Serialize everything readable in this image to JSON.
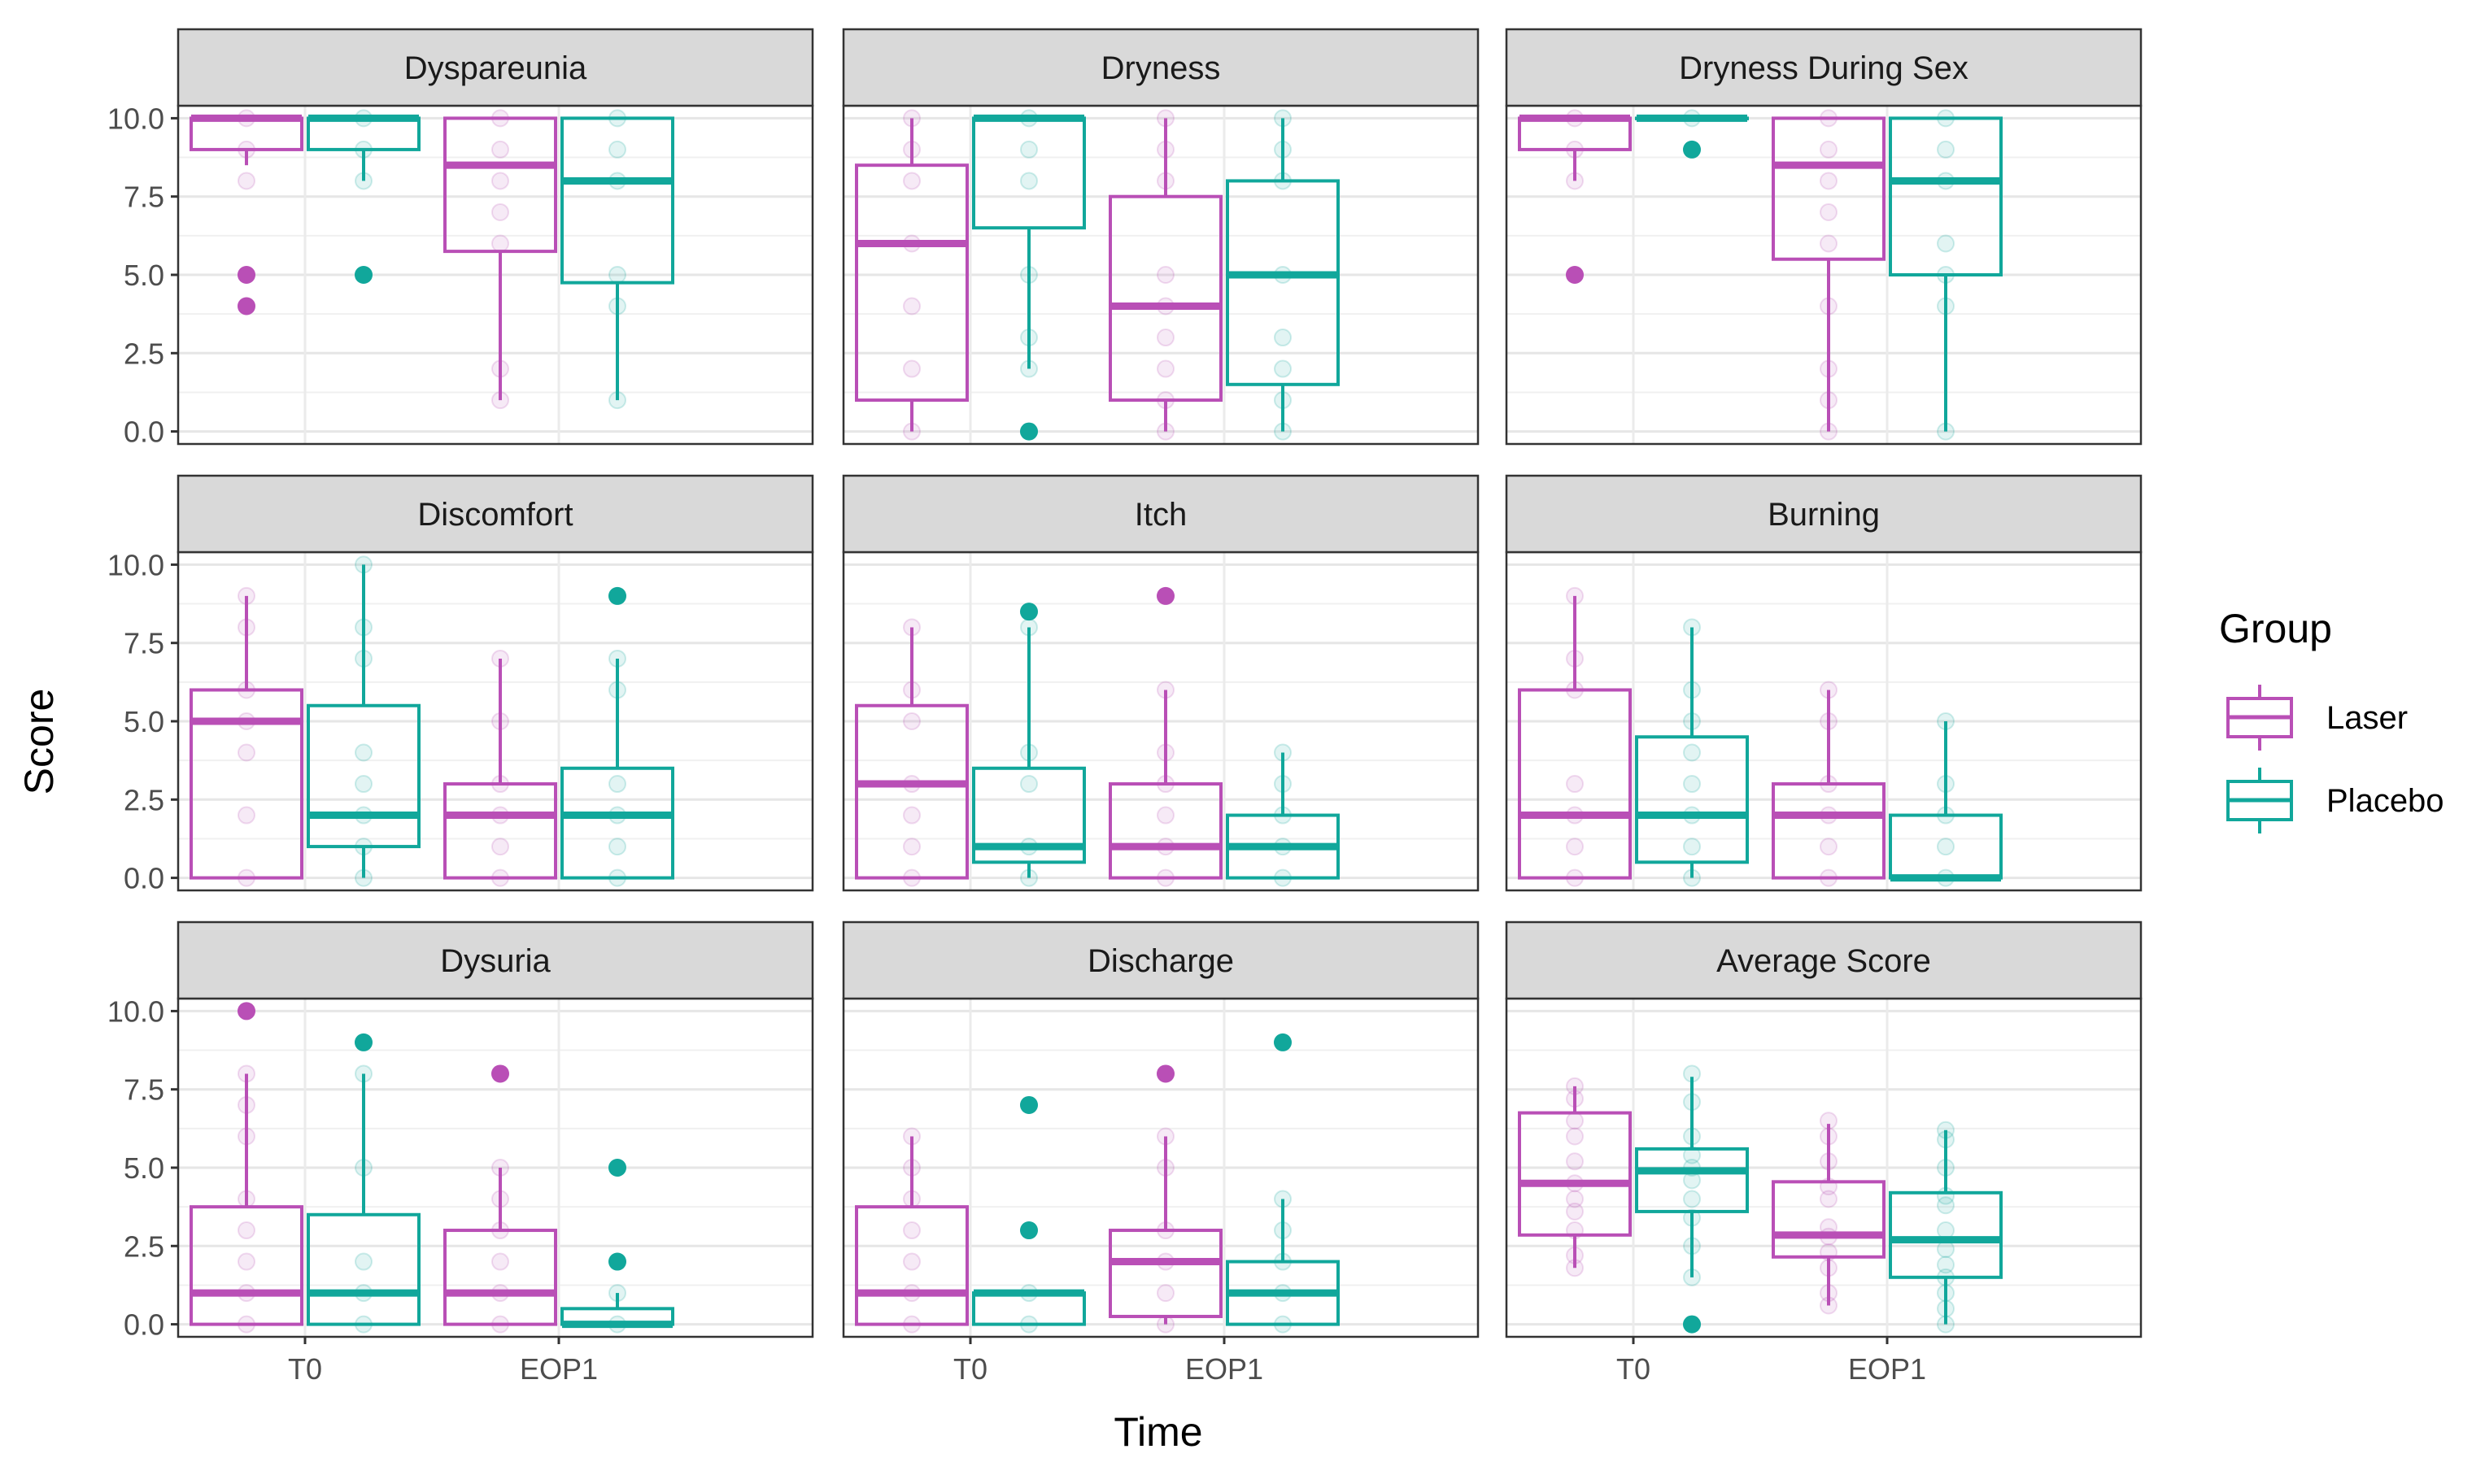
{
  "chart_data": {
    "type": "boxplot",
    "layout": "facet grid 3x3",
    "xlabel": "Time",
    "ylabel": "Score",
    "categories": [
      "T0",
      "EOP1"
    ],
    "ylim": [
      -0.4,
      10.4
    ],
    "yticks": [
      0,
      2.5,
      5,
      7.5,
      10
    ],
    "ytick_labels": [
      "0.0",
      "2.5",
      "5.0",
      "7.5",
      "10.0"
    ],
    "legend": {
      "title": "Group",
      "position": "right",
      "items": [
        {
          "name": "Laser",
          "color": "#b94fb6"
        },
        {
          "name": "Placebo",
          "color": "#11a79b"
        }
      ]
    },
    "panels": [
      {
        "title": "Dyspareunia",
        "boxes": [
          {
            "time": "T0",
            "group": "Laser",
            "q1": 9,
            "median": 10,
            "q3": 10,
            "lower": 8.5,
            "upper": 10,
            "outliers": [
              5,
              4
            ],
            "points": [
              10,
              9,
              8,
              5,
              4
            ]
          },
          {
            "time": "T0",
            "group": "Placebo",
            "q1": 9,
            "median": 10,
            "q3": 10,
            "lower": 8,
            "upper": 10,
            "outliers": [
              5
            ],
            "points": [
              10,
              9,
              8,
              5
            ]
          },
          {
            "time": "EOP1",
            "group": "Laser",
            "q1": 5.75,
            "median": 8.5,
            "q3": 10,
            "lower": 1,
            "upper": 10,
            "outliers": [],
            "points": [
              10,
              9,
              8,
              7,
              6,
              2,
              1
            ]
          },
          {
            "time": "EOP1",
            "group": "Placebo",
            "q1": 4.75,
            "median": 8,
            "q3": 10,
            "lower": 1,
            "upper": 10,
            "outliers": [],
            "points": [
              10,
              9,
              8,
              5,
              4,
              1
            ]
          }
        ]
      },
      {
        "title": "Dryness",
        "boxes": [
          {
            "time": "T0",
            "group": "Laser",
            "q1": 1,
            "median": 6,
            "q3": 8.5,
            "lower": 0,
            "upper": 10,
            "outliers": [],
            "points": [
              10,
              9,
              8,
              6,
              4,
              2,
              0
            ]
          },
          {
            "time": "T0",
            "group": "Placebo",
            "q1": 6.5,
            "median": 10,
            "q3": 10,
            "lower": 2,
            "upper": 10,
            "outliers": [
              0
            ],
            "points": [
              10,
              9,
              8,
              5,
              3,
              2,
              0
            ]
          },
          {
            "time": "EOP1",
            "group": "Laser",
            "q1": 1,
            "median": 4,
            "q3": 7.5,
            "lower": 0,
            "upper": 10,
            "outliers": [],
            "points": [
              10,
              9,
              8,
              5,
              4,
              3,
              2,
              1,
              0
            ]
          },
          {
            "time": "EOP1",
            "group": "Placebo",
            "q1": 1.5,
            "median": 5,
            "q3": 8,
            "lower": 0,
            "upper": 10,
            "outliers": [],
            "points": [
              10,
              9,
              8,
              5,
              3,
              2,
              1,
              0
            ]
          }
        ]
      },
      {
        "title": "Dryness During Sex",
        "boxes": [
          {
            "time": "T0",
            "group": "Laser",
            "q1": 9,
            "median": 10,
            "q3": 10,
            "lower": 8,
            "upper": 10,
            "outliers": [
              5
            ],
            "points": [
              10,
              9,
              8,
              5
            ]
          },
          {
            "time": "T0",
            "group": "Placebo",
            "q1": 10,
            "median": 10,
            "q3": 10,
            "lower": 10,
            "upper": 10,
            "outliers": [
              9
            ],
            "points": [
              10,
              9
            ]
          },
          {
            "time": "EOP1",
            "group": "Laser",
            "q1": 5.5,
            "median": 8.5,
            "q3": 10,
            "lower": 0,
            "upper": 10,
            "outliers": [],
            "points": [
              10,
              9,
              8,
              7,
              6,
              4,
              2,
              1,
              0
            ]
          },
          {
            "time": "EOP1",
            "group": "Placebo",
            "q1": 5,
            "median": 8,
            "q3": 10,
            "lower": 0,
            "upper": 10,
            "outliers": [],
            "points": [
              10,
              9,
              8,
              6,
              5,
              4,
              0
            ]
          }
        ]
      },
      {
        "title": "Discomfort",
        "boxes": [
          {
            "time": "T0",
            "group": "Laser",
            "q1": 0,
            "median": 5,
            "q3": 6,
            "lower": 0,
            "upper": 9,
            "outliers": [],
            "points": [
              9,
              8,
              6,
              5,
              4,
              2,
              0
            ]
          },
          {
            "time": "T0",
            "group": "Placebo",
            "q1": 1,
            "median": 2,
            "q3": 5.5,
            "lower": 0,
            "upper": 10,
            "outliers": [],
            "points": [
              10,
              8,
              7,
              4,
              3,
              2,
              1,
              0
            ]
          },
          {
            "time": "EOP1",
            "group": "Laser",
            "q1": 0,
            "median": 2,
            "q3": 3,
            "lower": 0,
            "upper": 7,
            "outliers": [],
            "points": [
              7,
              5,
              3,
              2,
              1,
              0
            ]
          },
          {
            "time": "EOP1",
            "group": "Placebo",
            "q1": 0,
            "median": 2,
            "q3": 3.5,
            "lower": 0,
            "upper": 7,
            "outliers": [
              9
            ],
            "points": [
              9,
              7,
              6,
              3,
              2,
              1,
              0
            ]
          }
        ]
      },
      {
        "title": "Itch",
        "boxes": [
          {
            "time": "T0",
            "group": "Laser",
            "q1": 0,
            "median": 3,
            "q3": 5.5,
            "lower": 0,
            "upper": 8,
            "outliers": [],
            "points": [
              8,
              6,
              5,
              3,
              2,
              1,
              0
            ]
          },
          {
            "time": "T0",
            "group": "Placebo",
            "q1": 0.5,
            "median": 1,
            "q3": 3.5,
            "lower": 0,
            "upper": 8,
            "outliers": [
              8.5
            ],
            "points": [
              8.5,
              8,
              4,
              3,
              1,
              0
            ]
          },
          {
            "time": "EOP1",
            "group": "Laser",
            "q1": 0,
            "median": 1,
            "q3": 3,
            "lower": 0,
            "upper": 6,
            "outliers": [
              9
            ],
            "points": [
              9,
              6,
              4,
              3,
              2,
              1,
              0
            ]
          },
          {
            "time": "EOP1",
            "group": "Placebo",
            "q1": 0,
            "median": 1,
            "q3": 2,
            "lower": 0,
            "upper": 4,
            "outliers": [],
            "points": [
              4,
              3,
              2,
              1,
              0
            ]
          }
        ]
      },
      {
        "title": "Burning",
        "boxes": [
          {
            "time": "T0",
            "group": "Laser",
            "q1": 0,
            "median": 2,
            "q3": 6,
            "lower": 0,
            "upper": 9,
            "outliers": [],
            "points": [
              9,
              7,
              6,
              3,
              2,
              1,
              0
            ]
          },
          {
            "time": "T0",
            "group": "Placebo",
            "q1": 0.5,
            "median": 2,
            "q3": 4.5,
            "lower": 0,
            "upper": 8,
            "outliers": [],
            "points": [
              8,
              6,
              5,
              4,
              3,
              2,
              1,
              0
            ]
          },
          {
            "time": "EOP1",
            "group": "Laser",
            "q1": 0,
            "median": 2,
            "q3": 3,
            "lower": 0,
            "upper": 6,
            "outliers": [],
            "points": [
              6,
              5,
              3,
              2,
              1,
              0
            ]
          },
          {
            "time": "EOP1",
            "group": "Placebo",
            "q1": 0,
            "median": 0,
            "q3": 2,
            "lower": 0,
            "upper": 5,
            "outliers": [],
            "points": [
              5,
              3,
              2,
              1,
              0
            ]
          }
        ]
      },
      {
        "title": "Dysuria",
        "boxes": [
          {
            "time": "T0",
            "group": "Laser",
            "q1": 0,
            "median": 1,
            "q3": 3.75,
            "lower": 0,
            "upper": 8,
            "outliers": [
              10
            ],
            "points": [
              10,
              8,
              7,
              6,
              4,
              3,
              2,
              1,
              0
            ]
          },
          {
            "time": "T0",
            "group": "Placebo",
            "q1": 0,
            "median": 1,
            "q3": 3.5,
            "lower": 0,
            "upper": 8,
            "outliers": [
              9
            ],
            "points": [
              9,
              8,
              5,
              2,
              1,
              0
            ]
          },
          {
            "time": "EOP1",
            "group": "Laser",
            "q1": 0,
            "median": 1,
            "q3": 3,
            "lower": 0,
            "upper": 5,
            "outliers": [
              8
            ],
            "points": [
              8,
              5,
              4,
              3,
              2,
              1,
              0
            ]
          },
          {
            "time": "EOP1",
            "group": "Placebo",
            "q1": 0,
            "median": 0,
            "q3": 0.5,
            "lower": 0,
            "upper": 1,
            "outliers": [
              5,
              2
            ],
            "points": [
              5,
              2,
              1,
              0
            ]
          }
        ]
      },
      {
        "title": "Discharge",
        "boxes": [
          {
            "time": "T0",
            "group": "Laser",
            "q1": 0,
            "median": 1,
            "q3": 3.75,
            "lower": 0,
            "upper": 6,
            "outliers": [],
            "points": [
              6,
              5,
              4,
              3,
              2,
              1,
              0
            ]
          },
          {
            "time": "T0",
            "group": "Placebo",
            "q1": 0,
            "median": 1,
            "q3": 1,
            "lower": 0,
            "upper": 1,
            "outliers": [
              7,
              3
            ],
            "points": [
              7,
              3,
              1,
              0
            ]
          },
          {
            "time": "EOP1",
            "group": "Laser",
            "q1": 0.25,
            "median": 2,
            "q3": 3,
            "lower": 0,
            "upper": 6,
            "outliers": [
              8
            ],
            "points": [
              8,
              6,
              5,
              3,
              2,
              1,
              0
            ]
          },
          {
            "time": "EOP1",
            "group": "Placebo",
            "q1": 0,
            "median": 1,
            "q3": 2,
            "lower": 0,
            "upper": 4,
            "outliers": [
              9
            ],
            "points": [
              9,
              4,
              3,
              2,
              1,
              0
            ]
          }
        ]
      },
      {
        "title": "Average Score",
        "boxes": [
          {
            "time": "T0",
            "group": "Laser",
            "q1": 2.85,
            "median": 4.5,
            "q3": 6.75,
            "lower": 1.8,
            "upper": 7.6,
            "outliers": [],
            "points": [
              7.6,
              7.2,
              6.5,
              6,
              5.2,
              4.5,
              4,
              3.6,
              3,
              2.2,
              1.8
            ]
          },
          {
            "time": "T0",
            "group": "Placebo",
            "q1": 3.6,
            "median": 4.9,
            "q3": 5.6,
            "lower": 1.5,
            "upper": 7.9,
            "outliers": [
              0
            ],
            "points": [
              8,
              7.1,
              6,
              5.4,
              5,
              4.6,
              4,
              3.4,
              2.5,
              1.5,
              0
            ]
          },
          {
            "time": "EOP1",
            "group": "Laser",
            "q1": 2.15,
            "median": 2.85,
            "q3": 4.55,
            "lower": 0.6,
            "upper": 6.4,
            "outliers": [],
            "points": [
              6.5,
              6,
              5.2,
              4.4,
              4,
              3.1,
              2.8,
              2.3,
              1.8,
              1,
              0.6
            ]
          },
          {
            "time": "EOP1",
            "group": "Placebo",
            "q1": 1.5,
            "median": 2.7,
            "q3": 4.2,
            "lower": 0,
            "upper": 6.2,
            "outliers": [],
            "points": [
              6.2,
              5.9,
              5,
              4.1,
              3.8,
              3,
              2.4,
              1.9,
              1.5,
              1,
              0.5,
              0
            ]
          }
        ]
      }
    ]
  }
}
